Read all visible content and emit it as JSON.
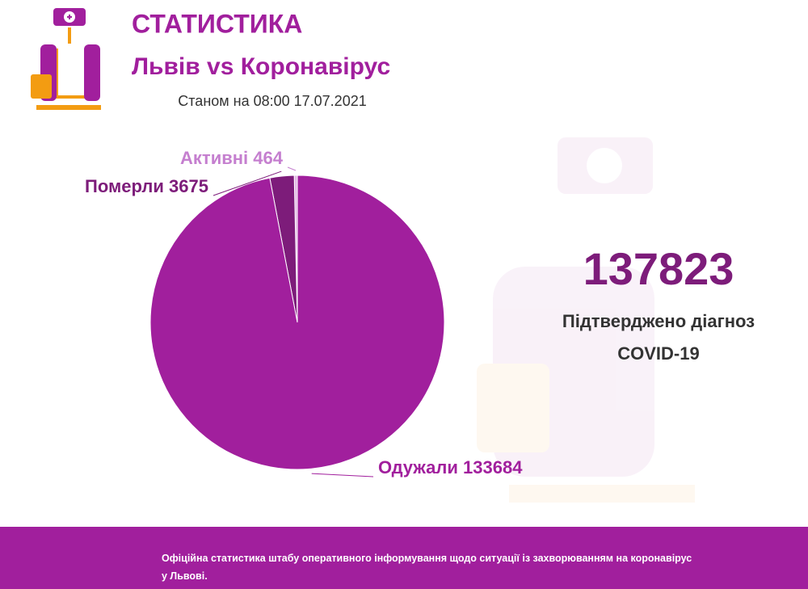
{
  "header": {
    "title": "СТАТИСТИКА",
    "subtitle": "Львів vs Коронавірус",
    "date": "Станом на 08:00 17.07.2021"
  },
  "chart_data": {
    "type": "pie",
    "categories": [
      "Активні",
      "Померли",
      "Одужали"
    ],
    "values": [
      464,
      3675,
      133684
    ],
    "colors": [
      "#e2b6e4",
      "#7d1c7a",
      "#a11f9d"
    ],
    "label_colors": [
      "#c57fcf",
      "#7d1c7a",
      "#a11f9d"
    ]
  },
  "summary": {
    "confirmed": 137823,
    "caption": "Підтверджено діагноз COVID-19"
  },
  "footer": {
    "text": "Офіційна статистика штабу оперативного інформування щодо ситуації із захворюванням на коронавірус у Львові."
  }
}
